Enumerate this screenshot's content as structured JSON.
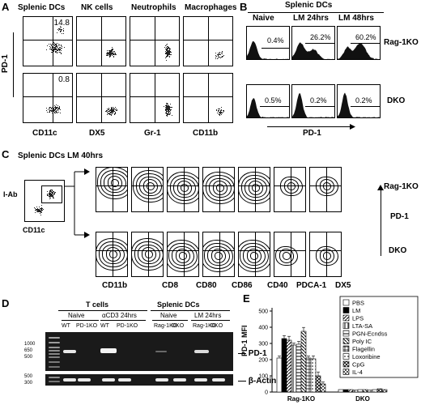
{
  "panelA": {
    "letter": "A",
    "headers": [
      "Splenic DCs",
      "NK cells",
      "Neutrophils",
      "Macrophages"
    ],
    "row_top_value": "14.8",
    "row_bottom_value": "0.8",
    "ylabel": "PD-1",
    "xlabels": [
      "CD11c",
      "DX5",
      "Gr-1",
      "CD11b"
    ]
  },
  "panelB": {
    "letter": "B",
    "title": "Splenic DCs",
    "headers": [
      "Naive",
      "LM 24hrs",
      "LM 48hrs"
    ],
    "rows": [
      {
        "label": "Rag-1KO",
        "values": [
          "0.4%",
          "26.2%",
          "60.2%"
        ]
      },
      {
        "label": "DKO",
        "values": [
          "0.5%",
          "0.2%",
          "0.2%"
        ]
      }
    ],
    "xlabel": "PD-1"
  },
  "panelC": {
    "letter": "C",
    "title": "Splenic  DCs LM 40hrs",
    "gate_ylabel": "I-Ab",
    "gate_xlabel": "CD11c",
    "rows": [
      "Rag-1KO",
      "DKO"
    ],
    "ylabel": "PD-1",
    "xlabels": [
      "CD11b",
      "CD8",
      "CD80",
      "CD86",
      "CD40",
      "PDCA-1",
      "DX5"
    ]
  },
  "panelD": {
    "letter": "D",
    "group_tcells": "T cells",
    "group_dcs": "Splenic DCs",
    "sub_naive1": "Naive",
    "sub_acd3": "αCD3 24hrs",
    "sub_naive2": "Naive",
    "sub_lm": "LM 24hrs",
    "lanes": [
      "WT",
      "PD-1KO",
      "WT",
      "PD-1KO",
      "Rag-1KO",
      "DKO",
      "Rag-1KO",
      "DKO"
    ],
    "ladder_top": [
      "1000",
      "650",
      "500"
    ],
    "ladder_bottom": [
      "500",
      "300"
    ],
    "band_top": "PD-1",
    "band_bottom": "β-Actin"
  },
  "panelE": {
    "letter": "E",
    "ylabel": "PD-1 MFI",
    "yticks": [
      "0",
      "100",
      "200",
      "300",
      "400",
      "500"
    ],
    "groups": [
      "Rag-1KO",
      "DKO"
    ],
    "legend": [
      "PBS",
      "LM",
      "LPS",
      "LTA-SA",
      "PGN-Ecndss",
      "Poly IC",
      "Flagellin",
      "Loxoribine",
      "CpG",
      "IL-4"
    ]
  },
  "chart_data": {
    "type": "bar",
    "categories": [
      "Rag-1KO",
      "DKO"
    ],
    "ylabel": "PD-1 MFI",
    "ylim": [
      0,
      500
    ],
    "series": [
      {
        "name": "PBS",
        "values": [
          210,
          15
        ]
      },
      {
        "name": "LM",
        "values": [
          330,
          15
        ]
      },
      {
        "name": "LPS",
        "values": [
          320,
          15
        ]
      },
      {
        "name": "LTA-SA",
        "values": [
          290,
          12
        ]
      },
      {
        "name": "PGN-Ecndss",
        "values": [
          295,
          15
        ]
      },
      {
        "name": "Poly IC",
        "values": [
          375,
          15
        ]
      },
      {
        "name": "Flagellin",
        "values": [
          210,
          12
        ]
      },
      {
        "name": "Loxoribine",
        "values": [
          205,
          15
        ]
      },
      {
        "name": "CpG",
        "values": [
          100,
          20
        ]
      },
      {
        "name": "IL-4",
        "values": [
          50,
          15
        ]
      }
    ]
  }
}
